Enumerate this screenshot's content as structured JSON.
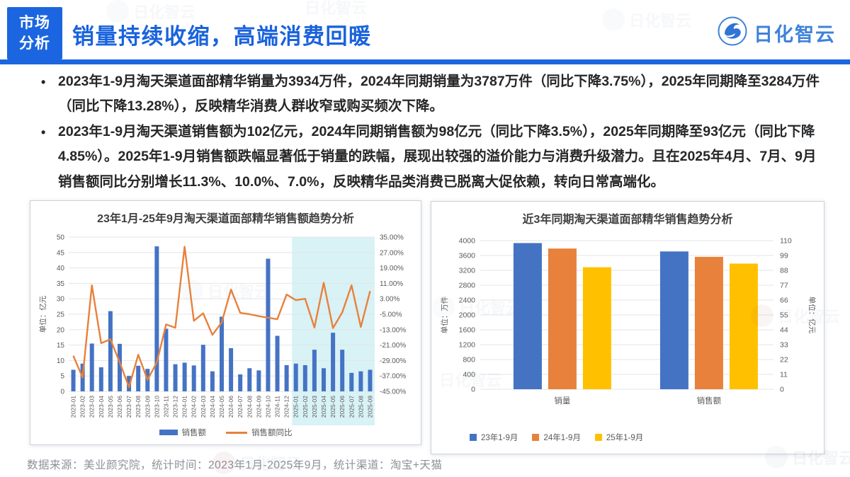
{
  "header": {
    "tag_line1": "市场",
    "tag_line2": "分析",
    "title": "销量持续收缩，高端消费回暖",
    "logo_text": "日化智云",
    "accent_color": "#1b66e0"
  },
  "bullets": {
    "marker": "•",
    "items": [
      "2023年1-9月淘天渠道面部精华销量为3934万件，2024年同期销量为3787万件（同比下降3.75%），2025年同期降至3284万件（同比下降13.28%），反映精华消费人群收窄或购买频次下降。",
      "2023年1-9月淘天渠道销售额为102亿元，2024年同期销售额为98亿元（同比下降3.5%），2025年同期降至93亿元（同比下降4.85%）。2025年1-9月销售额跌幅显著低于销量的跌幅，展现出较强的溢价能力与消费升级潜力。且在2025年4月、7月、9月销售额同比分别增长11.3%、10.0%、7.0%，反映精华品类消费已脱离大促依赖，转向日常高端化。"
    ]
  },
  "footer": {
    "text": "数据来源：美业颜究院，统计时间：2023年1月-2025年9月，统计渠道：淘宝+天猫"
  },
  "watermark_text": "日化智云",
  "chart_data": [
    {
      "type": "bar+line",
      "title": "23年1月-25年9月淘天渠道面部精华销售额趋势分析",
      "ylabel_left": "单位：亿元",
      "ylim_left": [
        0,
        50
      ],
      "ytick_step_left": 5,
      "ylim_right": [
        -45,
        35
      ],
      "ytick_step_right": 8,
      "tick_format_right": "percent2",
      "grid": true,
      "legend_position": "bottom",
      "categories": [
        "2023-01",
        "2023-02",
        "2023-03",
        "2023-04",
        "2023-05",
        "2023-06",
        "2023-07",
        "2023-08",
        "2023-09",
        "2023-10",
        "2023-11",
        "2023-12",
        "2024-01",
        "2024-02",
        "2024-03",
        "2024-04",
        "2024-05",
        "2024-06",
        "2024-07",
        "2024-08",
        "2024-09",
        "2024-10",
        "2024-11",
        "2024-12",
        "2025-01",
        "2025-02",
        "2025-03",
        "2025-04",
        "2025-05",
        "2025-06",
        "2025-07",
        "2025-08",
        "2025-09"
      ],
      "series": [
        {
          "name": "销售额",
          "type": "bar",
          "axis": "left",
          "color": "#4573C4",
          "values": [
            7,
            9,
            15.5,
            7.8,
            26,
            15.4,
            5,
            8.3,
            7.3,
            47,
            20.3,
            8.8,
            9.3,
            8.4,
            15.1,
            6.5,
            24.2,
            14,
            5.5,
            7.5,
            6.8,
            43,
            18,
            8.5,
            9,
            8.5,
            13.5,
            7.5,
            19,
            13.5,
            6,
            6.5,
            7
          ]
        },
        {
          "name": "销售额同比",
          "type": "line",
          "axis": "right",
          "color": "#E8813B",
          "values": [
            -26.5,
            -37.8,
            10,
            -20,
            -18,
            -30,
            -42.8,
            -26,
            -39,
            -30,
            -10.3,
            -12,
            30,
            -8.4,
            -4.5,
            -15.7,
            -9.2,
            7.8,
            -4.3,
            -5,
            -6,
            -6.8,
            -7.6,
            5.2,
            2.3,
            3,
            -11.9,
            11.3,
            -12.2,
            -4,
            10.0,
            -11.6,
            7.0
          ]
        }
      ],
      "highlight": {
        "from": "2025-01",
        "to": "2025-09",
        "color": "#D8F2F6"
      }
    },
    {
      "type": "bar",
      "title": "近3年同期淘天渠道面部精华销售趋势分析",
      "ylabel_left": "单位：万件",
      "ylabel_right": "单位：亿元",
      "ylim_left": [
        0,
        4000
      ],
      "ytick_step_left": 400,
      "ylim_right": [
        0,
        110
      ],
      "ytick_step_right": 11,
      "grid": true,
      "legend_position": "bottom-left",
      "categories": [
        "销量",
        "销售额"
      ],
      "category_axis": [
        "left",
        "right"
      ],
      "series": [
        {
          "name": "23年1-9月",
          "color": "#4573C4",
          "values": [
            3934,
            102
          ]
        },
        {
          "name": "24年1-9月",
          "color": "#E8813B",
          "values": [
            3787,
            98
          ]
        },
        {
          "name": "25年1-9月",
          "color": "#FFC000",
          "values": [
            3284,
            93
          ]
        }
      ]
    }
  ]
}
